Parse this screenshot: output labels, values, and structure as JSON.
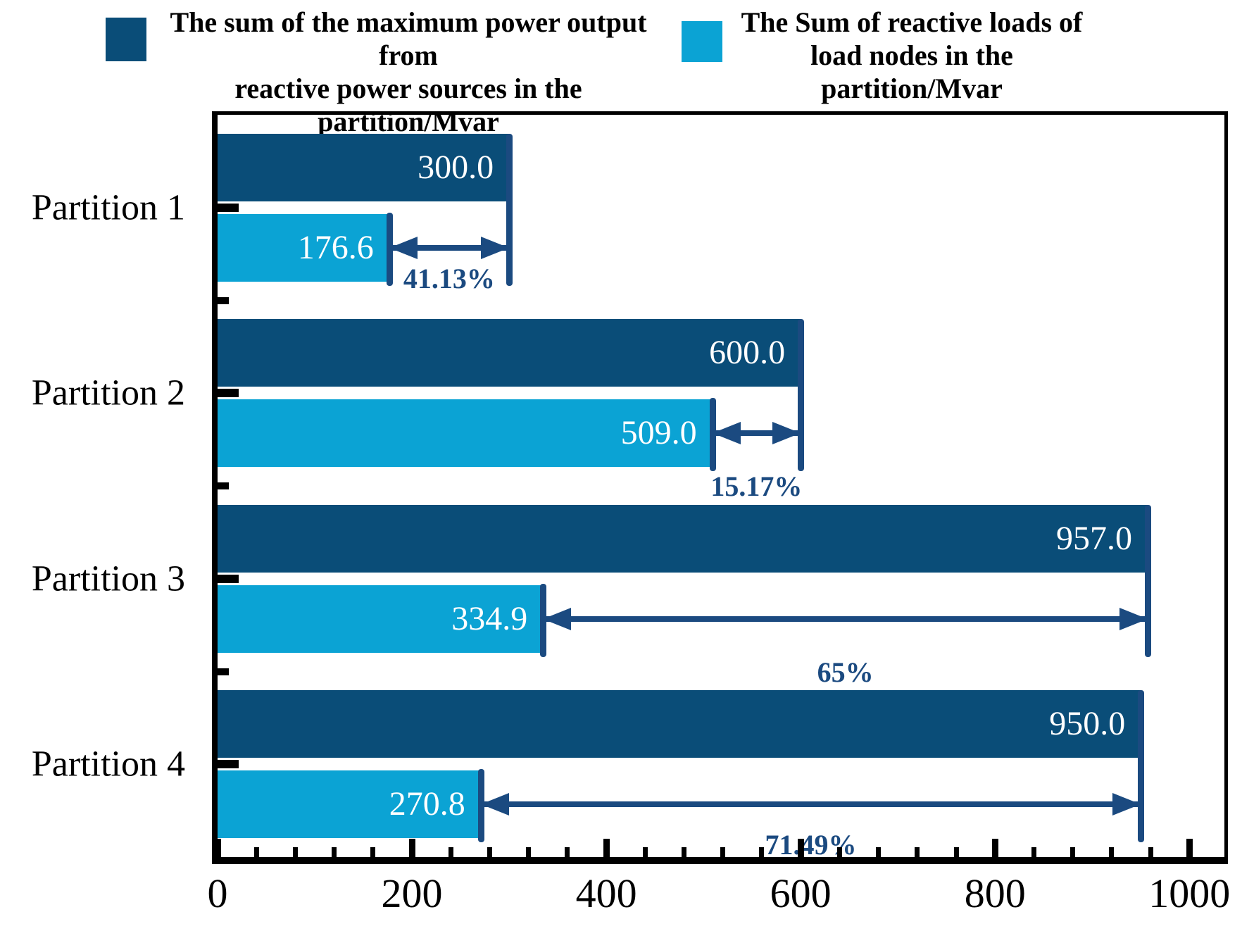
{
  "legend": {
    "items": [
      {
        "swatch_color": "#0a4d78",
        "line1": "The sum of the maximum power output from",
        "line2": "reactive power sources in the partition/Mvar"
      },
      {
        "swatch_color": "#0ba3d4",
        "line1": "The Sum of reactive loads of",
        "line2": "load nodes in the partition/Mvar"
      }
    ]
  },
  "chart_data": {
    "type": "bar",
    "orientation": "horizontal",
    "categories": [
      "Partition 1",
      "Partition 2",
      "Partition 3",
      "Partition 4"
    ],
    "series": [
      {
        "name": "The sum of the maximum power output from reactive power sources in the partition/Mvar",
        "color": "#0a4d78",
        "values": [
          300.0,
          600.0,
          957.0,
          950.0
        ],
        "value_labels": [
          "300.0",
          "600.0",
          "957.0",
          "950.0"
        ]
      },
      {
        "name": "The Sum of reactive loads of load nodes in the partition/Mvar",
        "color": "#0ba3d4",
        "values": [
          176.6,
          509.0,
          334.9,
          270.8
        ],
        "value_labels": [
          "176.6",
          "509.0",
          "334.9",
          "270.8"
        ]
      }
    ],
    "gap_annotations": [
      {
        "label": "41.13%"
      },
      {
        "label": "15.17%"
      },
      {
        "label": "65%"
      },
      {
        "label": "71.49%"
      }
    ],
    "annotation_color": "#1b4a80",
    "value_label_color": "#ffffff",
    "xlim": [
      0,
      1036
    ],
    "x_ticks": [
      0,
      200,
      400,
      600,
      800,
      1000
    ],
    "x_tick_labels": [
      "0",
      "200",
      "400",
      "600",
      "800",
      "1000"
    ],
    "x_minor_tick_step": 40,
    "grid": false,
    "legend_position": "top",
    "xlabel": "",
    "ylabel": ""
  }
}
